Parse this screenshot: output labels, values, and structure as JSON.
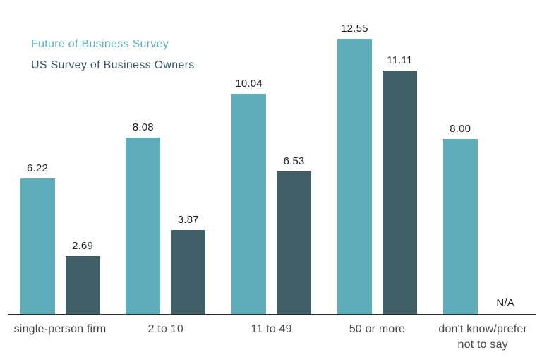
{
  "chart_data": {
    "type": "bar",
    "categories": [
      "single-person firm",
      "2 to 10",
      "11 to 49",
      "50 or more",
      "don't know/prefer\nnot to say"
    ],
    "series": [
      {
        "name": "Future of Business Survey",
        "color": "#5fadbb",
        "values": [
          6.22,
          8.08,
          10.04,
          12.55,
          8.0
        ],
        "value_labels": [
          "6.22",
          "8.08",
          "10.04",
          "12.55",
          "8.00"
        ]
      },
      {
        "name": "US Survey of Business Owners",
        "color": "#3f5e66",
        "values": [
          2.69,
          3.87,
          6.53,
          11.11,
          null
        ],
        "value_labels": [
          "2.69",
          "3.87",
          "6.53",
          "11.11",
          "N/A"
        ]
      }
    ],
    "missing_value_label": "N/A",
    "legend_position": "top-left",
    "grid": false,
    "ylim": [
      0,
      13.5
    ],
    "colors": {
      "axis_line": "#2b2b2b",
      "category_label": "#474747",
      "value_label": "#222222",
      "background": "#ffffff"
    }
  }
}
